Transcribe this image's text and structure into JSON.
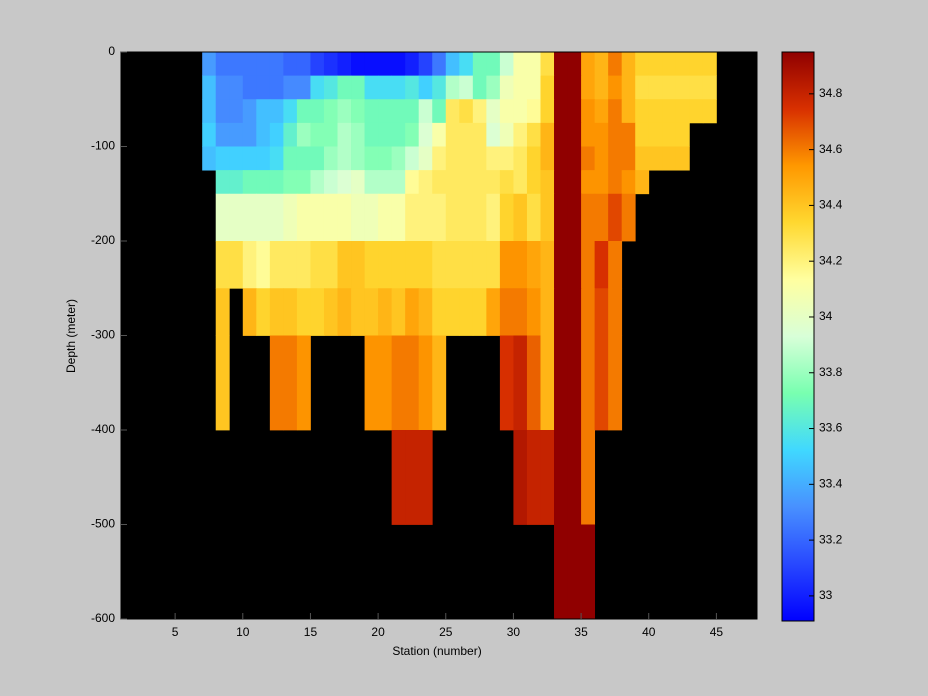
{
  "chart_data": {
    "type": "heatmap",
    "xlabel": "Station (number)",
    "ylabel": "Depth (meter)",
    "x": [
      7,
      8,
      9,
      10,
      11,
      12,
      13,
      14,
      15,
      16,
      17,
      18,
      19,
      20,
      21,
      22,
      23,
      24,
      25,
      26,
      27,
      28,
      29,
      30,
      31,
      32,
      33,
      34,
      35,
      36,
      37,
      38,
      39,
      40,
      41,
      42,
      43,
      44,
      45
    ],
    "y": [
      0,
      -25,
      -50,
      -75,
      -100,
      -125,
      -150,
      -200,
      -250,
      -300,
      -400,
      -500,
      -600
    ],
    "z": [
      [
        33.35,
        33.25,
        33.25,
        33.25,
        33.25,
        33.25,
        33.2,
        33.2,
        33.1,
        33.05,
        33.0,
        32.95,
        32.95,
        32.95,
        32.95,
        33.0,
        33.1,
        33.25,
        33.45,
        33.55,
        33.7,
        33.7,
        33.9,
        34.1,
        34.1,
        34.3,
        34.95,
        34.95,
        34.5,
        34.45,
        34.6,
        34.45,
        34.35,
        34.35,
        34.35,
        34.35,
        34.35,
        34.35
      ],
      [
        33.45,
        33.3,
        33.3,
        33.25,
        33.25,
        33.25,
        33.3,
        33.3,
        33.55,
        33.6,
        33.7,
        33.7,
        33.55,
        33.55,
        33.55,
        33.6,
        33.5,
        33.6,
        33.85,
        33.9,
        33.7,
        33.8,
        34.05,
        34.1,
        34.1,
        34.35,
        34.95,
        34.95,
        34.5,
        34.45,
        34.55,
        34.45,
        34.3,
        34.3,
        34.3,
        34.3,
        34.3,
        34.3
      ],
      [
        33.45,
        33.3,
        33.3,
        33.35,
        33.45,
        33.45,
        33.55,
        33.7,
        33.7,
        33.75,
        33.8,
        33.75,
        33.7,
        33.7,
        33.7,
        33.7,
        33.9,
        33.7,
        34.25,
        34.3,
        34.2,
        34.0,
        34.1,
        34.1,
        34.15,
        34.35,
        34.95,
        34.95,
        34.55,
        34.5,
        34.6,
        34.45,
        34.35,
        34.35,
        34.35,
        34.35,
        34.35,
        34.35
      ],
      [
        33.5,
        33.35,
        33.35,
        33.35,
        33.45,
        33.5,
        33.65,
        33.8,
        33.75,
        33.75,
        33.85,
        33.8,
        33.7,
        33.7,
        33.7,
        33.75,
        33.95,
        34.1,
        34.25,
        34.25,
        34.25,
        33.95,
        34.05,
        34.2,
        34.3,
        34.45,
        34.95,
        34.95,
        34.55,
        34.55,
        34.6,
        34.6,
        34.35,
        34.35,
        34.35,
        34.35,
        null,
        null
      ],
      [
        33.45,
        33.5,
        33.5,
        33.5,
        33.5,
        33.55,
        33.7,
        33.7,
        33.7,
        33.8,
        33.85,
        33.8,
        33.75,
        33.75,
        33.8,
        33.9,
        34.0,
        34.2,
        34.25,
        34.25,
        34.25,
        34.2,
        34.2,
        34.25,
        34.35,
        34.45,
        34.95,
        34.95,
        34.6,
        34.55,
        34.6,
        34.6,
        34.4,
        34.4,
        34.4,
        34.4,
        null,
        null
      ],
      [
        null,
        33.65,
        33.65,
        33.7,
        33.7,
        33.7,
        33.75,
        33.75,
        33.85,
        33.9,
        33.95,
        34.0,
        33.85,
        33.85,
        33.85,
        34.15,
        34.2,
        34.25,
        34.25,
        34.25,
        34.25,
        34.25,
        34.3,
        34.25,
        34.35,
        34.4,
        34.95,
        34.95,
        34.55,
        34.55,
        34.6,
        34.55,
        34.45,
        null,
        null,
        null,
        null,
        null
      ],
      [
        null,
        34.0,
        34.0,
        34.0,
        34.0,
        34.0,
        34.05,
        34.1,
        34.1,
        34.1,
        34.1,
        34.05,
        34.05,
        34.1,
        34.1,
        34.2,
        34.2,
        34.2,
        34.25,
        34.25,
        34.25,
        34.2,
        34.35,
        34.4,
        34.3,
        34.4,
        34.95,
        34.95,
        34.6,
        34.6,
        34.7,
        34.6,
        null,
        null,
        null,
        null,
        null,
        null
      ],
      [
        null,
        34.3,
        34.3,
        34.2,
        34.15,
        34.25,
        34.25,
        34.25,
        34.3,
        34.3,
        34.4,
        34.4,
        34.35,
        34.35,
        34.35,
        34.35,
        34.35,
        34.3,
        34.3,
        34.3,
        34.3,
        34.3,
        34.55,
        34.55,
        34.5,
        34.45,
        34.95,
        34.95,
        34.6,
        34.75,
        34.6,
        null,
        null,
        null,
        null,
        null,
        null,
        null
      ],
      [
        null,
        34.4,
        null,
        34.45,
        34.35,
        34.4,
        34.4,
        34.35,
        34.35,
        34.4,
        34.45,
        34.4,
        34.4,
        34.45,
        34.4,
        34.5,
        34.45,
        34.35,
        34.35,
        34.35,
        34.35,
        34.5,
        34.6,
        34.6,
        34.55,
        34.45,
        34.95,
        34.95,
        34.6,
        34.7,
        34.6,
        null,
        null,
        null,
        null,
        null,
        null,
        null
      ],
      [
        null,
        34.4,
        null,
        null,
        null,
        34.6,
        34.6,
        34.55,
        null,
        null,
        null,
        null,
        34.55,
        34.55,
        34.6,
        34.6,
        34.55,
        34.45,
        null,
        null,
        null,
        null,
        34.75,
        34.8,
        34.65,
        34.45,
        34.95,
        34.95,
        34.6,
        34.7,
        34.6,
        null,
        null,
        null,
        null,
        null,
        null,
        null
      ],
      [
        null,
        null,
        null,
        null,
        null,
        null,
        null,
        null,
        null,
        null,
        null,
        null,
        null,
        null,
        34.8,
        34.8,
        34.8,
        null,
        null,
        null,
        null,
        null,
        null,
        34.85,
        34.8,
        34.8,
        34.95,
        34.95,
        34.6,
        null,
        null,
        null,
        null,
        null,
        null,
        null,
        null,
        null
      ],
      [
        null,
        null,
        null,
        null,
        null,
        null,
        null,
        null,
        null,
        null,
        null,
        null,
        null,
        null,
        null,
        null,
        null,
        null,
        null,
        null,
        null,
        null,
        null,
        null,
        null,
        null,
        34.95,
        34.95,
        34.95,
        null,
        null,
        null,
        null,
        null,
        null,
        null,
        null,
        null
      ]
    ],
    "xlim": [
      1,
      48
    ],
    "ylim": [
      -600,
      0
    ],
    "xticks": [
      5,
      10,
      15,
      20,
      25,
      30,
      35,
      40,
      45
    ],
    "yticks": [
      -600,
      -500,
      -400,
      -300,
      -200,
      -100,
      0
    ],
    "clim": [
      32.91,
      34.95
    ],
    "cticks": [
      33,
      33.2,
      33.4,
      33.6,
      33.8,
      34,
      34.2,
      34.4,
      34.6,
      34.8
    ],
    "colormap": [
      "#0000ff",
      "#2848ff",
      "#4890ff",
      "#40d8ff",
      "#78ffb0",
      "#d8ffd8",
      "#ffffa0",
      "#ffd830",
      "#ff9800",
      "#d83000",
      "#900000"
    ],
    "background": "#000000"
  }
}
